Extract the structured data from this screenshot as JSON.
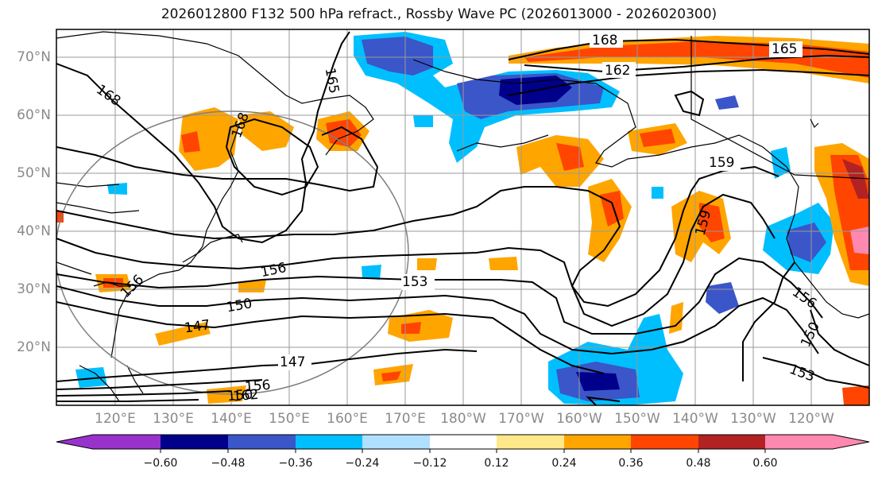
{
  "title": "2026012800 F132 500 hPa refract., Rossby Wave PC (2026013000 - 2026020300)",
  "lat_labels": [
    "70°N",
    "60°N",
    "50°N",
    "40°N",
    "30°N",
    "20°N"
  ],
  "lon_labels": [
    "120°E",
    "130°E",
    "140°E",
    "150°E",
    "160°E",
    "170°E",
    "180°W",
    "170°W",
    "160°W",
    "150°W",
    "140°W",
    "130°W",
    "120°W"
  ],
  "contour_labels": [
    "168",
    "165",
    "162",
    "168",
    "165",
    "168",
    "159",
    "159",
    "156",
    "156",
    "153",
    "150",
    "147",
    "147",
    "150",
    "156",
    "150",
    "153",
    "162",
    "156"
  ],
  "colorbar": {
    "tick_labels": [
      "−0.60",
      "−0.48",
      "−0.36",
      "−0.24",
      "−0.12",
      "0.12",
      "0.24",
      "0.36",
      "0.48",
      "0.60"
    ],
    "colors": [
      "#9932CC",
      "#00008B",
      "#3A56C9",
      "#00BFFF",
      "#B0E0FF",
      "#FFFFFF",
      "#FFE88A",
      "#FFA500",
      "#FF4500",
      "#B22222",
      "#FF88B0"
    ]
  }
}
